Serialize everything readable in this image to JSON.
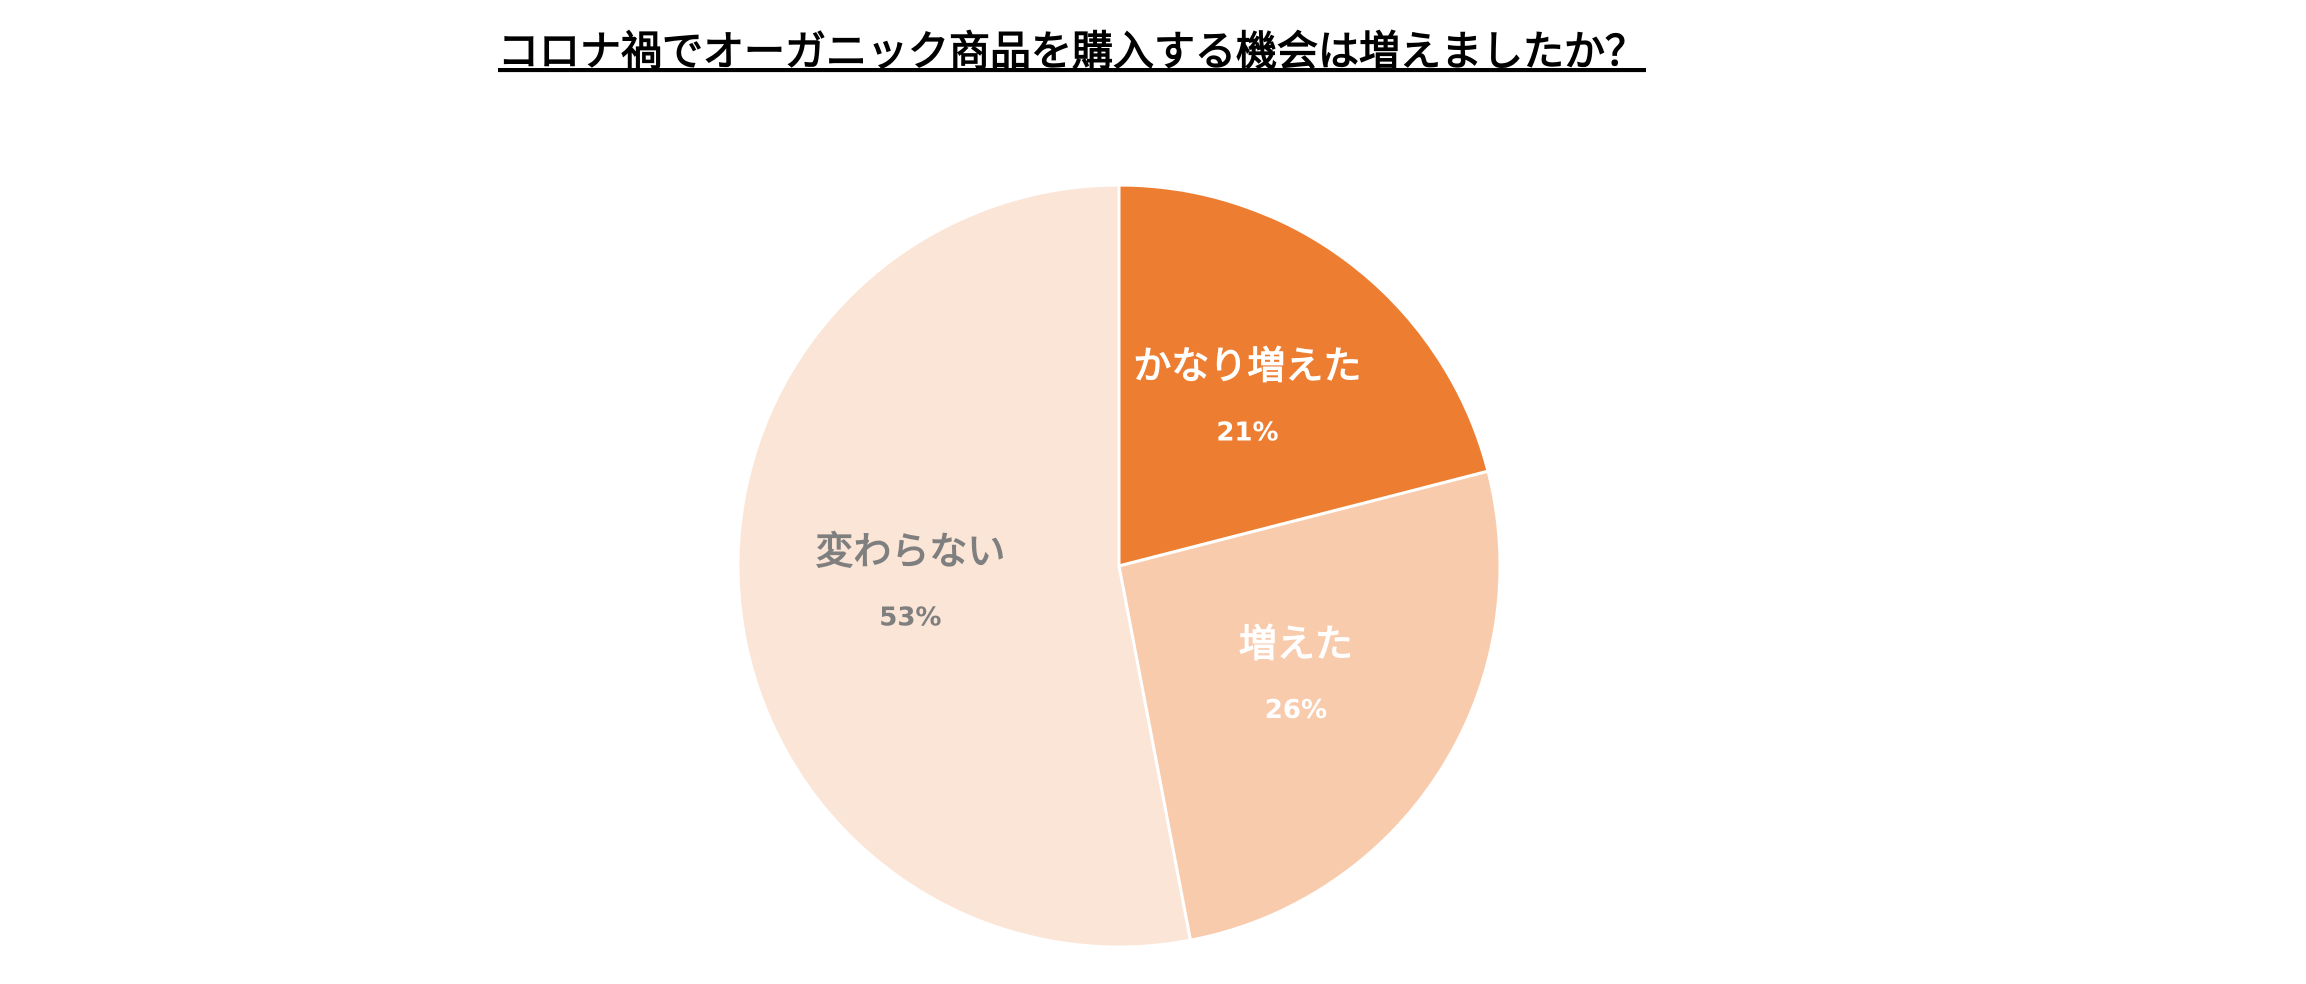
{
  "chart_data": {
    "type": "pie",
    "title": "コロナ禍でオーガニック商品を購入する機会は増えましたか？",
    "categories": [
      "かなり増えた",
      "増えた",
      "変わらない"
    ],
    "values": [
      21,
      26,
      53
    ],
    "value_labels": [
      "21%",
      "26%",
      "53%"
    ],
    "colors": [
      "#ED7D31",
      "#F8CBAD",
      "#FBE5D6"
    ],
    "label_colors": [
      "#FFFFFF",
      "#FFFFFF",
      "#7F7F7F"
    ]
  }
}
